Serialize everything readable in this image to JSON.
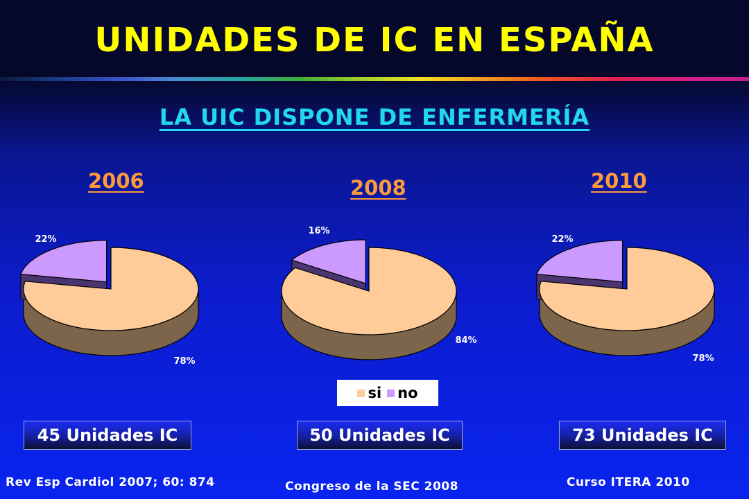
{
  "title": "UNIDADES DE IC EN ESPAÑA",
  "subtitle": "LA UIC DISPONE DE ENFERMERÍA",
  "legend": [
    {
      "label": "si",
      "color": "#ffcc99"
    },
    {
      "label": "no",
      "color": "#cc99ff"
    }
  ],
  "chart_data": [
    {
      "type": "pie",
      "title": "2006",
      "categories": [
        "si",
        "no"
      ],
      "values": [
        78,
        22
      ],
      "value_labels": [
        "78%",
        "22%"
      ],
      "note": "45 Unidades IC",
      "source": "Rev Esp Cardiol 2007; 60: 874"
    },
    {
      "type": "pie",
      "title": "2008",
      "categories": [
        "si",
        "no"
      ],
      "values": [
        84,
        16
      ],
      "value_labels": [
        "84%",
        "16%"
      ],
      "note": "50 Unidades IC",
      "source": "Congreso de la SEC 2008"
    },
    {
      "type": "pie",
      "title": "2010",
      "categories": [
        "si",
        "no"
      ],
      "values": [
        78,
        22
      ],
      "value_labels": [
        "78%",
        "22%"
      ],
      "note": "73 Unidades IC",
      "source": "Curso ITERA 2010"
    }
  ]
}
